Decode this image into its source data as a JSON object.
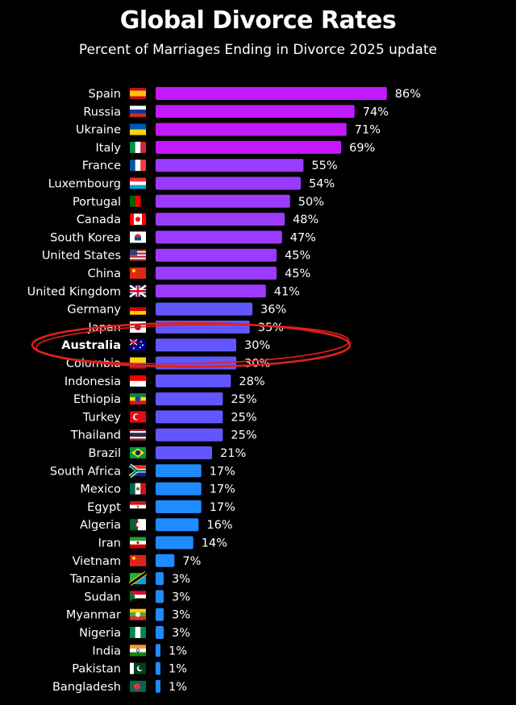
{
  "chart_data": {
    "type": "bar",
    "orientation": "horizontal",
    "title": "Global Divorce Rates",
    "subtitle": "Percent of Marriages Ending in Divorce 2025 update",
    "value_suffix": "%",
    "xlim": [
      0,
      100
    ],
    "grid": false,
    "highlight": "Australia",
    "highlight_color": "#e0201c",
    "categories": [
      "Spain",
      "Russia",
      "Ukraine",
      "Italy",
      "France",
      "Luxembourg",
      "Portugal",
      "Canada",
      "South Korea",
      "United States",
      "China",
      "United Kingdom",
      "Germany",
      "Japan",
      "Australia",
      "Colombia",
      "Indonesia",
      "Ethiopia",
      "Turkey",
      "Thailand",
      "Brazil",
      "South Africa",
      "Mexico",
      "Egypt",
      "Algeria",
      "Iran",
      "Vietnam",
      "Tanzania",
      "Sudan",
      "Myanmar",
      "Nigeria",
      "India",
      "Pakistan",
      "Bangladesh"
    ],
    "values": [
      86,
      74,
      71,
      69,
      55,
      54,
      50,
      48,
      47,
      45,
      45,
      41,
      36,
      35,
      30,
      30,
      28,
      25,
      25,
      25,
      21,
      17,
      17,
      17,
      16,
      14,
      7,
      3,
      3,
      3,
      3,
      1,
      1,
      1
    ],
    "colors": [
      "#c219ff",
      "#c219ff",
      "#c219ff",
      "#c219ff",
      "#9b3bff",
      "#9b3bff",
      "#9b3bff",
      "#9b3bff",
      "#9b3bff",
      "#9b3bff",
      "#9b3bff",
      "#9b3bff",
      "#6257ff",
      "#6257ff",
      "#6257ff",
      "#6257ff",
      "#6257ff",
      "#6257ff",
      "#6257ff",
      "#6257ff",
      "#6257ff",
      "#1f8bff",
      "#1f8bff",
      "#1f8bff",
      "#1f8bff",
      "#1f8bff",
      "#1f8bff",
      "#1f8bff",
      "#1f8bff",
      "#1f8bff",
      "#1f8bff",
      "#1f8bff",
      "#1f8bff",
      "#1f8bff"
    ],
    "flag_icons": [
      "flag-es-icon",
      "flag-ru-icon",
      "flag-ua-icon",
      "flag-it-icon",
      "flag-fr-icon",
      "flag-lu-icon",
      "flag-pt-icon",
      "flag-ca-icon",
      "flag-kr-icon",
      "flag-us-icon",
      "flag-cn-icon",
      "flag-gb-icon",
      "flag-de-icon",
      "flag-jp-icon",
      "flag-au-icon",
      "flag-co-icon",
      "flag-id-icon",
      "flag-et-icon",
      "flag-tr-icon",
      "flag-th-icon",
      "flag-br-icon",
      "flag-za-icon",
      "flag-mx-icon",
      "flag-eg-icon",
      "flag-dz-icon",
      "flag-ir-icon",
      "flag-vn-icon",
      "flag-tz-icon",
      "flag-sd-icon",
      "flag-mm-icon",
      "flag-ng-icon",
      "flag-in-icon",
      "flag-pk-icon",
      "flag-bd-icon"
    ],
    "flag_colors": [
      [
        "#c60b1e",
        "#ffc400",
        "#c60b1e"
      ],
      [
        "#ffffff",
        "#0039a6",
        "#d52b1e"
      ],
      [
        "#0057b7",
        "#ffd700"
      ],
      [
        "#009246",
        "#ffffff",
        "#ce2b37"
      ],
      [
        "#0055a4",
        "#ffffff",
        "#ef4135"
      ],
      [
        "#ed2939",
        "#ffffff",
        "#00a1de"
      ],
      [
        "#006600",
        "#ff0000"
      ],
      [
        "#ff0000",
        "#ffffff",
        "#ff0000"
      ],
      [
        "#ffffff"
      ],
      [
        "#b22234",
        "#ffffff",
        "#3c3b6e"
      ],
      [
        "#de2910"
      ],
      [
        "#012169",
        "#ffffff",
        "#c8102e"
      ],
      [
        "#000000",
        "#dd0000",
        "#ffce00"
      ],
      [
        "#ffffff",
        "#bc002d"
      ],
      [
        "#00008b",
        "#ffffff",
        "#ff0000"
      ],
      [
        "#fcd116",
        "#003893",
        "#ce1126"
      ],
      [
        "#ff0000",
        "#ffffff"
      ],
      [
        "#078930",
        "#fcdd09",
        "#da121a"
      ],
      [
        "#e30a17"
      ],
      [
        "#a51931",
        "#f4f5f8",
        "#2d2a4a"
      ],
      [
        "#009c3b",
        "#ffdf00",
        "#002776"
      ],
      [
        "#007a4d",
        "#de3831",
        "#002395"
      ],
      [
        "#006847",
        "#ffffff",
        "#ce1126"
      ],
      [
        "#ce1126",
        "#ffffff",
        "#000000"
      ],
      [
        "#006233",
        "#ffffff",
        "#d21034"
      ],
      [
        "#239f40",
        "#ffffff",
        "#da0000"
      ],
      [
        "#da251d"
      ],
      [
        "#1eb53a",
        "#00a3dd",
        "#000000"
      ],
      [
        "#d21034",
        "#ffffff",
        "#000000"
      ],
      [
        "#fecb00",
        "#34b233",
        "#ea2839"
      ],
      [
        "#008751",
        "#ffffff",
        "#008751"
      ],
      [
        "#ff9933",
        "#ffffff",
        "#138808"
      ],
      [
        "#01411c",
        "#ffffff"
      ],
      [
        "#006a4e",
        "#f42a41"
      ]
    ]
  }
}
